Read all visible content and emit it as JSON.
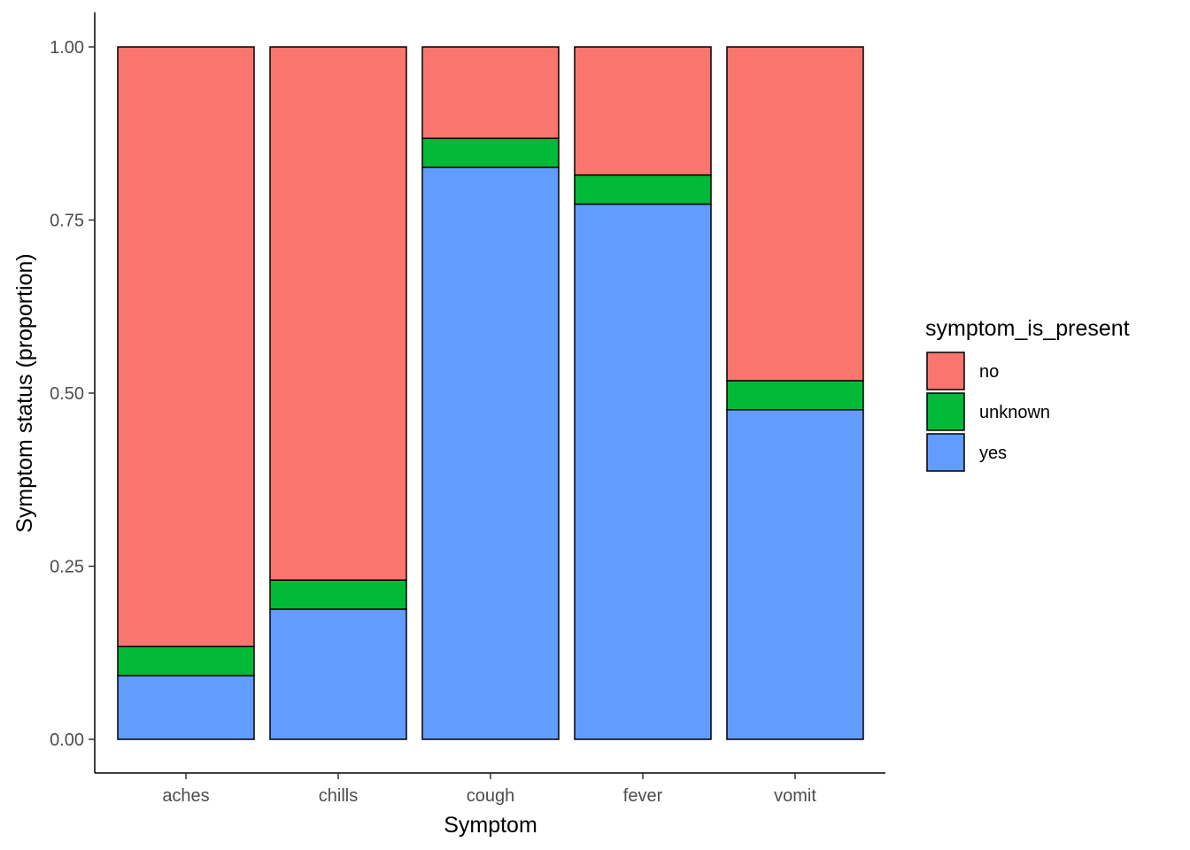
{
  "chart_data": {
    "type": "bar",
    "stacked": true,
    "categories": [
      "aches",
      "chills",
      "cough",
      "fever",
      "vomit"
    ],
    "series": [
      {
        "name": "yes",
        "color": "#619CFF",
        "values": [
          0.092,
          0.188,
          0.826,
          0.773,
          0.476
        ]
      },
      {
        "name": "unknown",
        "color": "#00BA38",
        "values": [
          0.042,
          0.042,
          0.042,
          0.042,
          0.042
        ]
      },
      {
        "name": "no",
        "color": "#F8766D",
        "values": [
          0.866,
          0.77,
          0.132,
          0.185,
          0.482
        ]
      }
    ],
    "xlabel": "Symptom",
    "ylabel": "Symptom status (proportion)",
    "ylim": [
      0,
      1
    ],
    "yticks": [
      {
        "value": 0,
        "label": "0.00"
      },
      {
        "value": 0.25,
        "label": "0.25"
      },
      {
        "value": 0.5,
        "label": "0.50"
      },
      {
        "value": 0.75,
        "label": "0.75"
      },
      {
        "value": 1,
        "label": "1.00"
      }
    ],
    "grid": false,
    "legend": {
      "title": "symptom_is_present",
      "position": "right",
      "entries": [
        {
          "label": "no",
          "color": "#F8766D"
        },
        {
          "label": "unknown",
          "color": "#00BA38"
        },
        {
          "label": "yes",
          "color": "#619CFF"
        }
      ]
    }
  }
}
